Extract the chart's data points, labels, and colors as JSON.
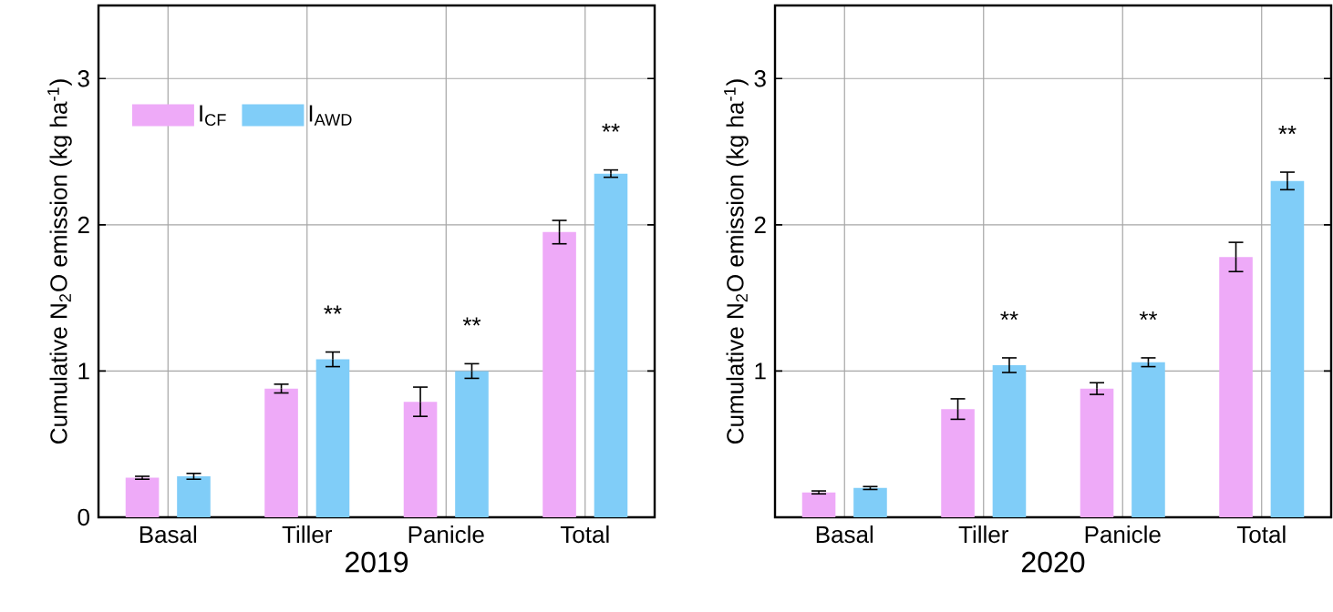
{
  "chart_data": [
    {
      "type": "bar",
      "xlabel": "2019",
      "ylabel": "Cumulative N$_{2}$O emission (kg ha$^{-1}$)",
      "categories": [
        "Basal",
        "Tiller",
        "Panicle",
        "Total"
      ],
      "ylim": [
        0,
        3.5
      ],
      "yticks": [
        0,
        1,
        2,
        3
      ],
      "grid": true,
      "legend": "top left",
      "series": [
        {
          "name": "I$_{CF}$",
          "color": "#eeaaf8",
          "values": [
            0.27,
            0.88,
            0.79,
            1.95
          ],
          "errors": [
            0.01,
            0.03,
            0.1,
            0.08
          ]
        },
        {
          "name": "I$_{AWD}$",
          "color": "#80cdf8",
          "values": [
            0.28,
            1.08,
            1.0,
            2.35
          ],
          "errors": [
            0.02,
            0.05,
            0.05,
            0.025
          ]
        }
      ],
      "annotations": [
        "**",
        "**",
        "**"
      ]
    },
    {
      "type": "bar",
      "xlabel": "2020",
      "ylabel": "Cumulative N$_{2}$O emission (kg ha$^{-1}$)",
      "categories": [
        "Basal",
        "Tiller",
        "Panicle",
        "Total"
      ],
      "ylim": [
        0,
        3.5
      ],
      "yticks": [
        1,
        2,
        3
      ],
      "grid": true,
      "series": [
        {
          "color": "#eeaaf8",
          "values": [
            0.17,
            0.74,
            0.88,
            1.78
          ],
          "errors": [
            0.01,
            0.07,
            0.04,
            0.1
          ]
        },
        {
          "color": "#80cdf8",
          "values": [
            0.2,
            1.04,
            1.06,
            2.3
          ],
          "errors": [
            0.01,
            0.05,
            0.03,
            0.06
          ]
        }
      ],
      "annotations": [
        "**",
        "**",
        "**"
      ]
    }
  ]
}
